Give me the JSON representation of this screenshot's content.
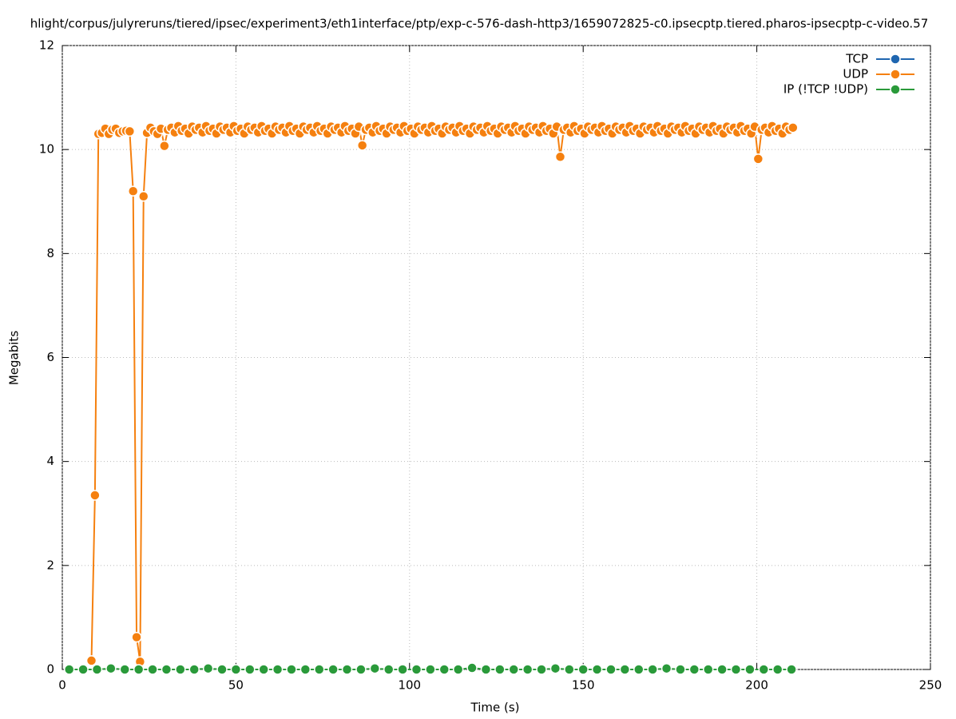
{
  "chart_data": {
    "type": "line",
    "title": "hlight/corpus/julyreruns/tiered/ipsec/experiment3/eth1interface/ptp/exp-c-576-dash-http3/1659072825-c0.ipsecptp.tiered.pharos-ipsecptp-c-video.57",
    "x_label": "Time (s)",
    "y_label": "Megabits",
    "xlim": [
      0,
      250
    ],
    "xticks": [
      0,
      50,
      100,
      150,
      200,
      250
    ],
    "ylim": [
      0,
      12
    ],
    "yticks": [
      0,
      2,
      4,
      6,
      8,
      10,
      12
    ],
    "grid": true,
    "legend": "top-right",
    "series": [
      {
        "name": "TCP",
        "color": "#1f66b0",
        "x": [],
        "values": []
      },
      {
        "name": "UDP",
        "color": "#f5800f",
        "x": [
          8.4,
          9.4,
          10.4,
          11.4,
          12.4,
          13.4,
          14.4,
          15.4,
          16.4,
          17.4,
          18.4,
          19.4,
          20.4,
          21.4,
          22.4,
          23.4,
          24.4,
          25.4,
          26.4,
          27.4,
          28.4,
          29.4,
          30.4,
          31.4,
          32.4,
          33.4,
          34.4,
          35.4,
          36.4,
          37.4,
          38.4,
          39.4,
          40.4,
          41.4,
          42.4,
          43.4,
          44.4,
          45.4,
          46.4,
          47.4,
          48.4,
          49.4,
          50.4,
          51.4,
          52.4,
          53.4,
          54.4,
          55.4,
          56.4,
          57.4,
          58.4,
          59.4,
          60.4,
          61.4,
          62.4,
          63.4,
          64.4,
          65.4,
          66.4,
          67.4,
          68.4,
          69.4,
          70.4,
          71.4,
          72.4,
          73.4,
          74.4,
          75.4,
          76.4,
          77.4,
          78.4,
          79.4,
          80.4,
          81.4,
          82.4,
          83.4,
          84.4,
          85.4,
          86.4,
          87.4,
          88.4,
          89.4,
          90.4,
          91.4,
          92.4,
          93.4,
          94.4,
          95.4,
          96.4,
          97.4,
          98.4,
          99.4,
          100.4,
          101.4,
          102.4,
          103.4,
          104.4,
          105.4,
          106.4,
          107.4,
          108.4,
          109.4,
          110.4,
          111.4,
          112.4,
          113.4,
          114.4,
          115.4,
          116.4,
          117.4,
          118.4,
          119.4,
          120.4,
          121.4,
          122.4,
          123.4,
          124.4,
          125.4,
          126.4,
          127.4,
          128.4,
          129.4,
          130.4,
          131.4,
          132.4,
          133.4,
          134.4,
          135.4,
          136.4,
          137.4,
          138.4,
          139.4,
          140.4,
          141.4,
          142.4,
          143.4,
          144.4,
          145.4,
          146.4,
          147.4,
          148.4,
          149.4,
          150.4,
          151.4,
          152.4,
          153.4,
          154.4,
          155.4,
          156.4,
          157.4,
          158.4,
          159.4,
          160.4,
          161.4,
          162.4,
          163.4,
          164.4,
          165.4,
          166.4,
          167.4,
          168.4,
          169.4,
          170.4,
          171.4,
          172.4,
          173.4,
          174.4,
          175.4,
          176.4,
          177.4,
          178.4,
          179.4,
          180.4,
          181.4,
          182.4,
          183.4,
          184.4,
          185.4,
          186.4,
          187.4,
          188.4,
          189.4,
          190.4,
          191.4,
          192.4,
          193.4,
          194.4,
          195.4,
          196.4,
          197.4,
          198.4,
          199.4,
          200.4,
          201.4,
          202.4,
          203.4,
          204.4,
          205.4,
          206.4,
          207.4,
          208.4,
          209.4,
          210.4
        ],
        "values": [
          0.17,
          3.35,
          10.3,
          10.32,
          10.4,
          10.3,
          10.38,
          10.4,
          10.32,
          10.35,
          10.36,
          10.35,
          9.2,
          0.62,
          0.15,
          9.1,
          10.32,
          10.42,
          10.35,
          10.3,
          10.4,
          10.07,
          10.38,
          10.42,
          10.33,
          10.45,
          10.36,
          10.4,
          10.31,
          10.44,
          10.38,
          10.42,
          10.33,
          10.45,
          10.36,
          10.4,
          10.31,
          10.44,
          10.38,
          10.42,
          10.33,
          10.45,
          10.36,
          10.4,
          10.31,
          10.44,
          10.38,
          10.42,
          10.33,
          10.45,
          10.36,
          10.4,
          10.31,
          10.44,
          10.38,
          10.42,
          10.33,
          10.45,
          10.36,
          10.4,
          10.31,
          10.44,
          10.38,
          10.42,
          10.33,
          10.45,
          10.36,
          10.4,
          10.31,
          10.44,
          10.38,
          10.42,
          10.33,
          10.45,
          10.36,
          10.4,
          10.31,
          10.44,
          10.08,
          10.38,
          10.42,
          10.33,
          10.45,
          10.36,
          10.4,
          10.31,
          10.44,
          10.38,
          10.42,
          10.33,
          10.45,
          10.36,
          10.4,
          10.31,
          10.44,
          10.38,
          10.42,
          10.33,
          10.45,
          10.36,
          10.4,
          10.31,
          10.44,
          10.38,
          10.42,
          10.33,
          10.45,
          10.36,
          10.4,
          10.31,
          10.44,
          10.38,
          10.42,
          10.33,
          10.45,
          10.36,
          10.4,
          10.31,
          10.44,
          10.38,
          10.42,
          10.33,
          10.45,
          10.36,
          10.4,
          10.31,
          10.44,
          10.38,
          10.42,
          10.33,
          10.45,
          10.36,
          10.4,
          10.31,
          10.44,
          9.86,
          10.38,
          10.42,
          10.33,
          10.45,
          10.36,
          10.4,
          10.31,
          10.44,
          10.38,
          10.42,
          10.33,
          10.45,
          10.36,
          10.4,
          10.31,
          10.44,
          10.38,
          10.42,
          10.33,
          10.45,
          10.36,
          10.4,
          10.31,
          10.44,
          10.38,
          10.42,
          10.33,
          10.45,
          10.36,
          10.4,
          10.31,
          10.44,
          10.38,
          10.42,
          10.33,
          10.45,
          10.36,
          10.4,
          10.31,
          10.44,
          10.38,
          10.42,
          10.33,
          10.45,
          10.36,
          10.4,
          10.31,
          10.44,
          10.38,
          10.42,
          10.33,
          10.45,
          10.36,
          10.4,
          10.31,
          10.44,
          9.82,
          10.38,
          10.42,
          10.33,
          10.45,
          10.36,
          10.4,
          10.31,
          10.44,
          10.38,
          10.42
        ]
      },
      {
        "name": "IP (!TCP  !UDP)",
        "color": "#2a9a3a",
        "x": [
          2,
          6,
          10,
          14,
          18,
          22,
          26,
          30,
          34,
          38,
          42,
          46,
          50,
          54,
          58,
          62,
          66,
          70,
          74,
          78,
          82,
          86,
          90,
          94,
          98,
          102,
          106,
          110,
          114,
          118,
          122,
          126,
          130,
          134,
          138,
          142,
          146,
          150,
          154,
          158,
          162,
          166,
          170,
          174,
          178,
          182,
          186,
          190,
          194,
          198,
          202,
          206,
          210
        ],
        "values": [
          0,
          0,
          0,
          0.02,
          0,
          0,
          0,
          0,
          0,
          0,
          0.02,
          0,
          0,
          0,
          0,
          0,
          0,
          0,
          0,
          0,
          0,
          0,
          0.02,
          0,
          0,
          0,
          0,
          0,
          0,
          0.03,
          0,
          0,
          0,
          0,
          0,
          0.02,
          0,
          0,
          0,
          0,
          0,
          0,
          0,
          0.02,
          0,
          0,
          0,
          0,
          0,
          0,
          0,
          0,
          0
        ]
      }
    ]
  }
}
